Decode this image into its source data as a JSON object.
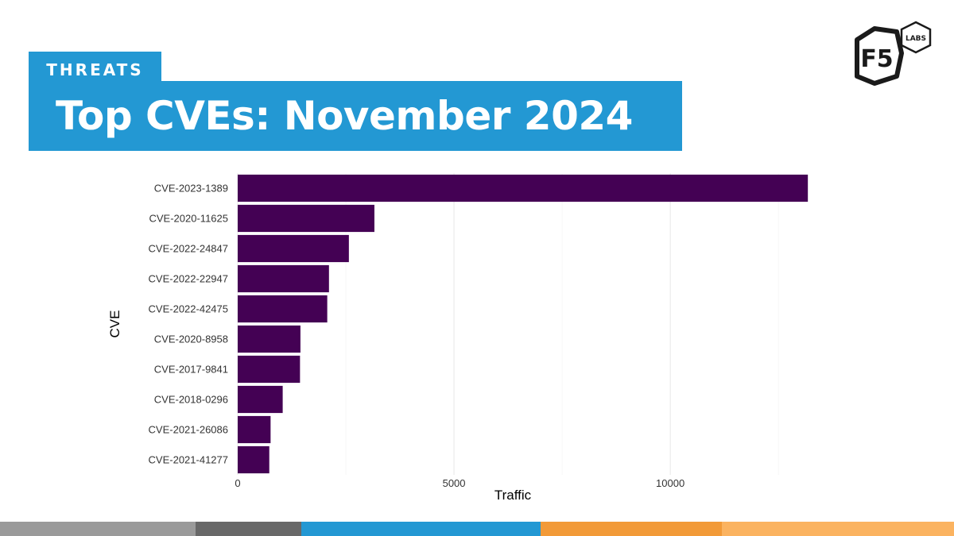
{
  "header": {
    "category": "THREATS",
    "title": "Top CVEs: November 2024"
  },
  "logo": {
    "brand": "F5",
    "sub": "LABS"
  },
  "colors": {
    "banner": "#2398d3",
    "bar": "#440154",
    "footer": [
      "#9a9a9a",
      "#686868",
      "#2398d3",
      "#f29a38",
      "#fbb360"
    ]
  },
  "chart_data": {
    "type": "bar",
    "orientation": "horizontal",
    "title": "",
    "xlabel": "Traffic",
    "ylabel": "CVE",
    "categories": [
      "CVE-2023-1389",
      "CVE-2020-11625",
      "CVE-2022-24847",
      "CVE-2022-22947",
      "CVE-2022-42475",
      "CVE-2020-8958",
      "CVE-2017-9841",
      "CVE-2018-0296",
      "CVE-2021-26086",
      "CVE-2021-41277"
    ],
    "values": [
      13180,
      3160,
      2570,
      2110,
      2070,
      1450,
      1440,
      1040,
      760,
      730
    ],
    "xlim": [
      0,
      14500
    ],
    "xticks": [
      0,
      5000,
      10000
    ],
    "xtick_labels": [
      "0",
      "5000",
      "10000"
    ],
    "grid": true
  }
}
